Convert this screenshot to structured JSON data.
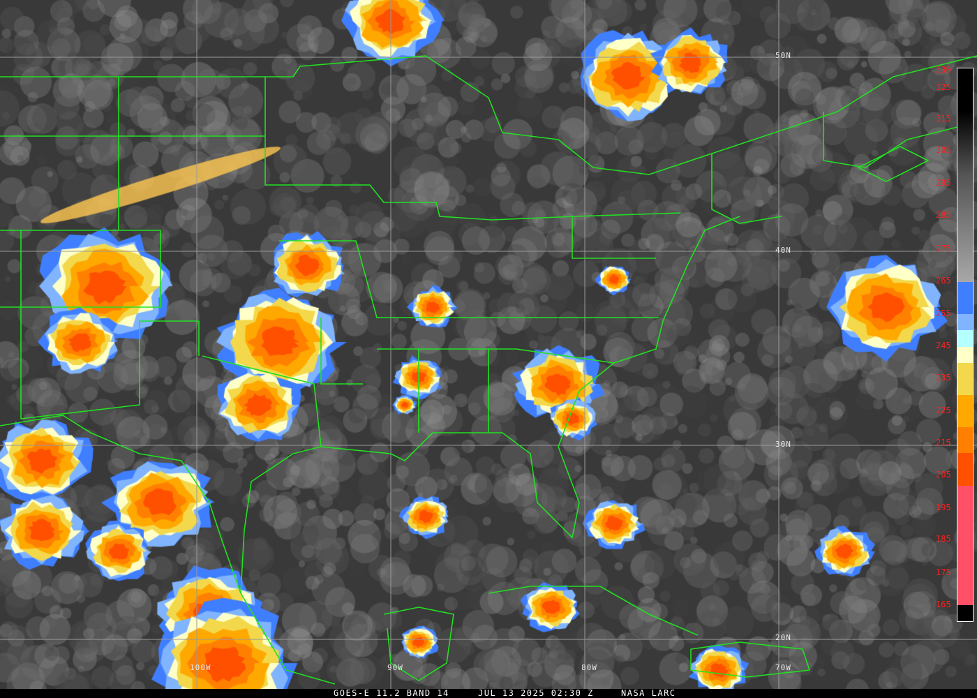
{
  "caption": {
    "satellite_band": "GOES-E 11.2 BAND 14",
    "datetime": "JUL 13 2025 02:30 Z",
    "source": "NASA LARC"
  },
  "grid": {
    "latitudes": [
      "50N",
      "40N",
      "30N",
      "20N"
    ],
    "longitudes": [
      "100W",
      "90W",
      "80W",
      "70W"
    ]
  },
  "colorbar": {
    "units_labels": [
      "330",
      "325",
      "315",
      "305",
      "295",
      "285",
      "275",
      "265",
      "255",
      "245",
      "235",
      "225",
      "215",
      "205",
      "195",
      "185",
      "175",
      "165"
    ],
    "label_color": "#ff2020",
    "enhancement_colors": [
      {
        "from": 265,
        "to": 255,
        "color": "#3f7fff"
      },
      {
        "from": 255,
        "to": 250,
        "color": "#80b4ff"
      },
      {
        "from": 250,
        "to": 245,
        "color": "#b4ffff"
      },
      {
        "from": 245,
        "to": 240,
        "color": "#ffffc8"
      },
      {
        "from": 240,
        "to": 230,
        "color": "#f2d84a"
      },
      {
        "from": 230,
        "to": 220,
        "color": "#ffa800"
      },
      {
        "from": 220,
        "to": 212,
        "color": "#ff8000"
      },
      {
        "from": 212,
        "to": 202,
        "color": "#ff5000"
      },
      {
        "from": 202,
        "to": 165,
        "color": "#ff5068"
      }
    ]
  },
  "colors": {
    "borders": "#22e022",
    "gridlines": "#a0a0a0",
    "background": "#3a3a3a"
  }
}
